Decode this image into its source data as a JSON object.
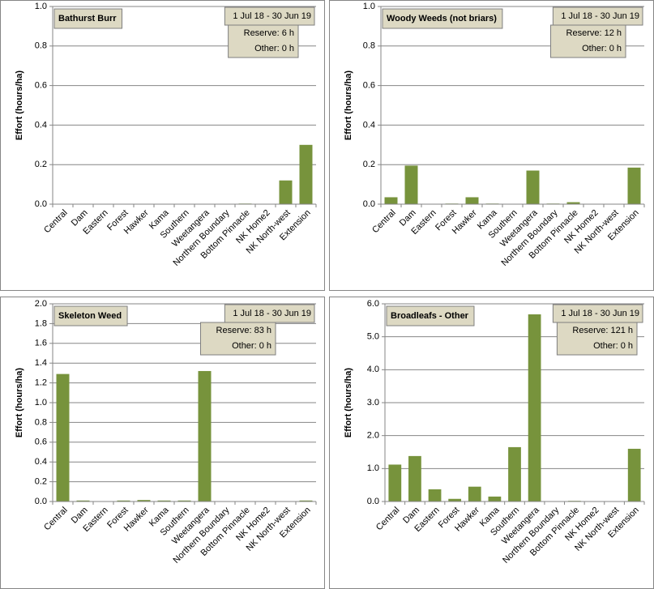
{
  "chart_data": [
    {
      "type": "bar",
      "title": "Bathurst Burr",
      "date_range": "1 Jul 18  -  30 Jun 19",
      "reserve": "Reserve:  6 h",
      "other": "Other:  0 h",
      "y_label": "Effort  (hours/ha)",
      "color": "#77933c",
      "grid": true,
      "categories": [
        "Central",
        "Dam",
        "Eastern",
        "Forest",
        "Hawker",
        "Kama",
        "Southern",
        "Weetangera",
        "Northern Boundary",
        "Bottom Pinnacle",
        "NK Home2",
        "NK North-west",
        "Extension"
      ],
      "values": [
        0,
        0,
        0,
        0,
        0,
        0,
        0,
        0,
        0,
        0.003,
        0,
        0.12,
        0.3
      ],
      "ylim": [
        0,
        1
      ],
      "yticks": [
        {
          "value": 0,
          "label": "0.0"
        },
        0.2,
        0.4,
        0.6,
        0.8,
        {
          "value": 1,
          "label": "1.0"
        }
      ]
    },
    {
      "type": "bar",
      "title": "Woody Weeds (not briars)",
      "date_range": "1 Jul 18  -  30 Jun 19",
      "reserve": "Reserve:  12 h",
      "other": "Other:  0 h",
      "y_label": "Effort  (hours/ha)",
      "color": "#77933c",
      "grid": true,
      "categories": [
        "Central",
        "Dam",
        "Eastern",
        "Forest",
        "Hawker",
        "Kama",
        "Southern",
        "Weetangera",
        "Northern Boundary",
        "Bottom Pinnacle",
        "NK Home2",
        "NK North-west",
        "Extension"
      ],
      "values": [
        0.035,
        0.195,
        0,
        0.003,
        0.035,
        0.003,
        0,
        0.17,
        0.003,
        0.01,
        0,
        0,
        0.185
      ],
      "ylim": [
        0,
        1
      ],
      "yticks": [
        {
          "value": 0,
          "label": "0.0"
        },
        0.2,
        0.4,
        0.6,
        0.8,
        {
          "value": 1,
          "label": "1.0"
        }
      ]
    },
    {
      "type": "bar",
      "title": "Skeleton Weed",
      "date_range": "1 Jul 18  -  30 Jun 19",
      "reserve": "Reserve:  83 h",
      "other": "Other:  0 h",
      "y_label": "Effort  (hours/ha)",
      "color": "#77933c",
      "grid": true,
      "categories": [
        "Central",
        "Dam",
        "Eastern",
        "Forest",
        "Hawker",
        "Kama",
        "Southern",
        "Weetangera",
        "Northern Boundary",
        "Bottom Pinnacle",
        "NK Home2",
        "NK North-west",
        "Extension"
      ],
      "values": [
        1.29,
        0.01,
        0,
        0.01,
        0.015,
        0.01,
        0.01,
        1.32,
        0,
        0,
        0,
        0,
        0.01
      ],
      "ylim": [
        0,
        2
      ],
      "yticks": [
        {
          "value": 0,
          "label": "0.0"
        },
        0.2,
        0.4,
        0.6,
        0.8,
        {
          "value": 1,
          "label": "1.0"
        },
        1.2,
        1.4,
        1.6,
        1.8,
        {
          "value": 2,
          "label": "2.0"
        }
      ]
    },
    {
      "type": "bar",
      "title": "Broadleafs - Other",
      "date_range": "1 Jul 18  -  30 Jun 19",
      "reserve": "Reserve:  121 h",
      "other": "Other:  0 h",
      "y_label": "Effort  (hours/ha)",
      "color": "#77933c",
      "grid": true,
      "categories": [
        "Central",
        "Dam",
        "Eastern",
        "Forest",
        "Hawker",
        "Kama",
        "Southern",
        "Weetangera",
        "Northern Boundary",
        "Bottom Pinnacle",
        "NK Home2",
        "NK North-west",
        "Extension"
      ],
      "values": [
        1.12,
        1.38,
        0.37,
        0.08,
        0.45,
        0.15,
        1.65,
        5.68,
        0,
        0.02,
        0,
        0,
        1.6
      ],
      "ylim": [
        0,
        6
      ],
      "yticks": [
        {
          "value": 0,
          "label": "0.0"
        },
        {
          "value": 1,
          "label": "1.0"
        },
        {
          "value": 2,
          "label": "2.0"
        },
        {
          "value": 3,
          "label": "3.0"
        },
        {
          "value": 4,
          "label": "4.0"
        },
        {
          "value": 5,
          "label": "5.0"
        },
        {
          "value": 6,
          "label": "6.0"
        }
      ]
    }
  ]
}
